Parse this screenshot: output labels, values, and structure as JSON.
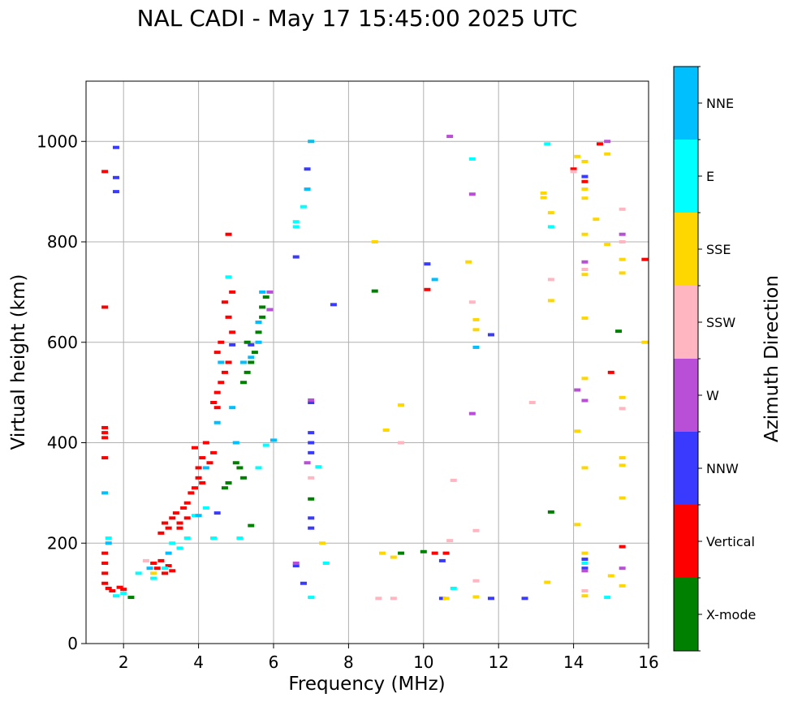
{
  "chart_data": {
    "type": "scatter",
    "title": "NAL CADI - May 17 15:45:00 2025 UTC",
    "xlabel": "Frequency (MHz)",
    "ylabel": "Virtual height (km)",
    "xlim": [
      1,
      16
    ],
    "ylim": [
      0,
      1120
    ],
    "xticks": [
      2,
      4,
      6,
      8,
      10,
      12,
      14,
      16
    ],
    "yticks": [
      0,
      200,
      400,
      600,
      800,
      1000
    ],
    "grid": true,
    "colorbar": {
      "label": "Azimuth Direction",
      "categories": [
        {
          "name": "X-mode",
          "color": "#008000"
        },
        {
          "name": "Vertical",
          "color": "#ff0000"
        },
        {
          "name": "NNW",
          "color": "#3a3aff"
        },
        {
          "name": "W",
          "color": "#b84fd6"
        },
        {
          "name": "SSW",
          "color": "#ffb6c1"
        },
        {
          "name": "SSE",
          "color": "#ffd700"
        },
        {
          "name": "E",
          "color": "#00ffff"
        },
        {
          "name": "NNE",
          "color": "#00bfff"
        }
      ]
    },
    "series": [
      {
        "name": "Vertical",
        "points": [
          [
            1.5,
            940
          ],
          [
            1.5,
            670
          ],
          [
            1.5,
            430
          ],
          [
            1.5,
            420
          ],
          [
            1.5,
            410
          ],
          [
            1.5,
            370
          ],
          [
            1.5,
            180
          ],
          [
            1.5,
            160
          ],
          [
            1.5,
            140
          ],
          [
            1.5,
            120
          ],
          [
            1.6,
            110
          ],
          [
            1.7,
            105
          ],
          [
            1.9,
            112
          ],
          [
            2.0,
            108
          ],
          [
            2.8,
            160
          ],
          [
            2.9,
            150
          ],
          [
            3.0,
            165
          ],
          [
            3.1,
            140
          ],
          [
            3.2,
            155
          ],
          [
            3.3,
            145
          ],
          [
            3.0,
            220
          ],
          [
            3.1,
            240
          ],
          [
            3.2,
            230
          ],
          [
            3.3,
            250
          ],
          [
            3.4,
            260
          ],
          [
            3.5,
            240
          ],
          [
            3.6,
            270
          ],
          [
            3.7,
            280
          ],
          [
            3.8,
            300
          ],
          [
            3.9,
            310
          ],
          [
            4.0,
            330
          ],
          [
            4.0,
            350
          ],
          [
            4.1,
            320
          ],
          [
            4.1,
            370
          ],
          [
            3.9,
            390
          ],
          [
            4.2,
            400
          ],
          [
            4.4,
            380
          ],
          [
            4.3,
            360
          ],
          [
            3.7,
            250
          ],
          [
            3.5,
            230
          ],
          [
            4.4,
            480
          ],
          [
            4.5,
            470
          ],
          [
            4.5,
            500
          ],
          [
            4.6,
            520
          ],
          [
            4.7,
            540
          ],
          [
            4.8,
            560
          ],
          [
            4.5,
            580
          ],
          [
            4.6,
            600
          ],
          [
            4.9,
            620
          ],
          [
            4.9,
            700
          ],
          [
            4.8,
            650
          ],
          [
            4.7,
            680
          ],
          [
            4.8,
            815
          ],
          [
            10.1,
            705
          ],
          [
            10.3,
            180
          ],
          [
            10.6,
            180
          ],
          [
            14.0,
            945
          ],
          [
            14.3,
            920
          ],
          [
            14.7,
            995
          ],
          [
            15.0,
            540
          ],
          [
            15.3,
            193
          ],
          [
            15.9,
            765
          ]
        ]
      },
      {
        "name": "X-mode",
        "points": [
          [
            2.2,
            92
          ],
          [
            4.7,
            310
          ],
          [
            4.8,
            320
          ],
          [
            5.1,
            350
          ],
          [
            5.2,
            520
          ],
          [
            5.3,
            540
          ],
          [
            5.4,
            560
          ],
          [
            5.5,
            580
          ],
          [
            5.3,
            600
          ],
          [
            5.6,
            620
          ],
          [
            5.7,
            650
          ],
          [
            5.7,
            670
          ],
          [
            5.8,
            690
          ],
          [
            5.2,
            330
          ],
          [
            5.0,
            360
          ],
          [
            5.4,
            235
          ],
          [
            7.0,
            288
          ],
          [
            8.7,
            702
          ],
          [
            9.4,
            180
          ],
          [
            10.0,
            183
          ],
          [
            13.4,
            262
          ],
          [
            15.2,
            622
          ]
        ]
      },
      {
        "name": "NNW",
        "points": [
          [
            1.8,
            900
          ],
          [
            1.8,
            928
          ],
          [
            1.8,
            988
          ],
          [
            4.5,
            260
          ],
          [
            4.9,
            595
          ],
          [
            5.4,
            595
          ],
          [
            6.6,
            770
          ],
          [
            6.6,
            155
          ],
          [
            6.8,
            120
          ],
          [
            6.9,
            945
          ],
          [
            7.0,
            480
          ],
          [
            7.0,
            420
          ],
          [
            7.0,
            400
          ],
          [
            7.0,
            380
          ],
          [
            7.0,
            250
          ],
          [
            7.0,
            230
          ],
          [
            7.6,
            675
          ],
          [
            10.1,
            756
          ],
          [
            10.5,
            165
          ],
          [
            10.5,
            90
          ],
          [
            11.8,
            615
          ],
          [
            11.8,
            90
          ],
          [
            12.7,
            90
          ],
          [
            14.3,
            930
          ],
          [
            14.3,
            168
          ],
          [
            14.3,
            150
          ]
        ]
      },
      {
        "name": "W",
        "points": [
          [
            5.9,
            700
          ],
          [
            5.9,
            665
          ],
          [
            6.9,
            360
          ],
          [
            7.0,
            485
          ],
          [
            6.6,
            160
          ],
          [
            10.7,
            1010
          ],
          [
            11.3,
            895
          ],
          [
            11.3,
            458
          ],
          [
            14.1,
            505
          ],
          [
            14.3,
            760
          ],
          [
            14.3,
            484
          ],
          [
            14.3,
            145
          ],
          [
            14.9,
            1000
          ],
          [
            15.3,
            815
          ],
          [
            15.3,
            150
          ]
        ]
      },
      {
        "name": "SSW",
        "points": [
          [
            2.6,
            165
          ],
          [
            7.0,
            330
          ],
          [
            9.4,
            400
          ],
          [
            10.7,
            205
          ],
          [
            10.8,
            325
          ],
          [
            11.3,
            680
          ],
          [
            11.4,
            225
          ],
          [
            11.4,
            125
          ],
          [
            12.9,
            480
          ],
          [
            13.4,
            725
          ],
          [
            14.0,
            940
          ],
          [
            14.3,
            745
          ],
          [
            14.3,
            105
          ],
          [
            15.3,
            865
          ],
          [
            15.3,
            800
          ],
          [
            15.3,
            468
          ],
          [
            8.8,
            90
          ],
          [
            9.2,
            90
          ]
        ]
      },
      {
        "name": "SSE",
        "points": [
          [
            2.8,
            140
          ],
          [
            7.0,
            1000
          ],
          [
            7.3,
            200
          ],
          [
            8.7,
            800
          ],
          [
            8.9,
            180
          ],
          [
            9.0,
            425
          ],
          [
            9.2,
            172
          ],
          [
            9.4,
            475
          ],
          [
            10.6,
            90
          ],
          [
            11.2,
            760
          ],
          [
            11.4,
            645
          ],
          [
            11.4,
            625
          ],
          [
            11.4,
            93
          ],
          [
            13.2,
            897
          ],
          [
            13.2,
            888
          ],
          [
            13.4,
            858
          ],
          [
            13.4,
            683
          ],
          [
            13.3,
            122
          ],
          [
            14.1,
            970
          ],
          [
            14.1,
            423
          ],
          [
            14.1,
            237
          ],
          [
            14.3,
            960
          ],
          [
            14.3,
            905
          ],
          [
            14.3,
            887
          ],
          [
            14.3,
            815
          ],
          [
            14.3,
            735
          ],
          [
            14.3,
            648
          ],
          [
            14.3,
            528
          ],
          [
            14.3,
            350
          ],
          [
            14.3,
            180
          ],
          [
            14.3,
            95
          ],
          [
            14.6,
            845
          ],
          [
            14.9,
            975
          ],
          [
            14.9,
            795
          ],
          [
            15.0,
            135
          ],
          [
            15.3,
            765
          ],
          [
            15.3,
            738
          ],
          [
            15.3,
            490
          ],
          [
            15.3,
            370
          ],
          [
            15.3,
            355
          ],
          [
            15.3,
            290
          ],
          [
            15.3,
            115
          ],
          [
            15.9,
            600
          ]
        ]
      },
      {
        "name": "E",
        "points": [
          [
            1.6,
            210
          ],
          [
            1.8,
            95
          ],
          [
            2.0,
            100
          ],
          [
            2.4,
            140
          ],
          [
            2.8,
            130
          ],
          [
            3.1,
            150
          ],
          [
            3.3,
            200
          ],
          [
            3.5,
            190
          ],
          [
            3.7,
            210
          ],
          [
            3.9,
            255
          ],
          [
            4.2,
            270
          ],
          [
            4.4,
            210
          ],
          [
            4.8,
            730
          ],
          [
            5.1,
            210
          ],
          [
            5.0,
            400
          ],
          [
            5.6,
            350
          ],
          [
            5.8,
            395
          ],
          [
            6.6,
            840
          ],
          [
            6.6,
            830
          ],
          [
            6.8,
            870
          ],
          [
            7.0,
            92
          ],
          [
            7.2,
            352
          ],
          [
            7.4,
            160
          ],
          [
            10.8,
            110
          ],
          [
            11.3,
            965
          ],
          [
            13.3,
            995
          ],
          [
            13.4,
            830
          ],
          [
            14.3,
            160
          ],
          [
            14.9,
            92
          ]
        ]
      },
      {
        "name": "NNE",
        "points": [
          [
            1.5,
            300
          ],
          [
            1.6,
            200
          ],
          [
            2.7,
            150
          ],
          [
            3.2,
            180
          ],
          [
            4.0,
            255
          ],
          [
            4.2,
            350
          ],
          [
            4.5,
            440
          ],
          [
            4.6,
            560
          ],
          [
            4.9,
            470
          ],
          [
            5.0,
            400
          ],
          [
            5.2,
            560
          ],
          [
            5.4,
            570
          ],
          [
            5.6,
            600
          ],
          [
            5.6,
            640
          ],
          [
            5.7,
            700
          ],
          [
            6.0,
            405
          ],
          [
            6.9,
            905
          ],
          [
            7.0,
            1000
          ],
          [
            11.4,
            590
          ],
          [
            10.3,
            725
          ]
        ]
      }
    ]
  }
}
